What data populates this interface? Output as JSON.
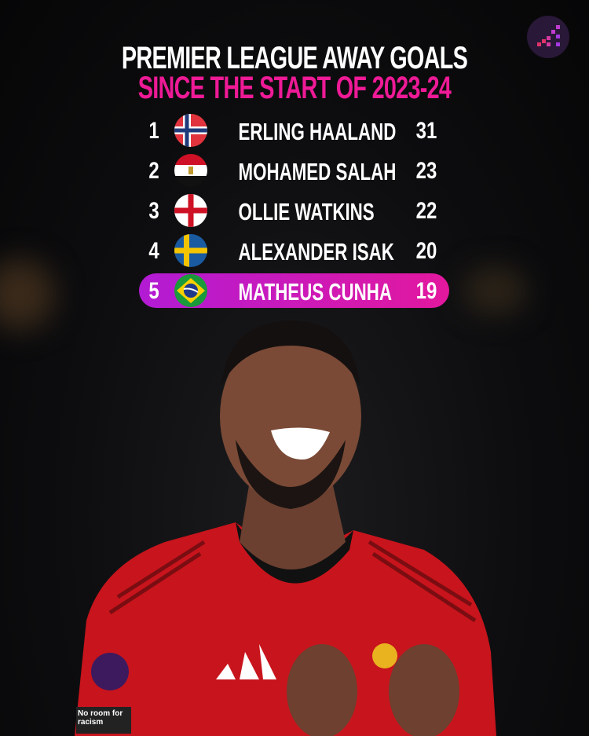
{
  "header": {
    "title": "PREMIER LEAGUE AWAY GOALS",
    "subtitle": "SINCE THE START OF 2023-24"
  },
  "colors": {
    "accent": "#ee1a96",
    "highlight_start": "#b21bd4",
    "highlight_end": "#e3189e"
  },
  "logo": {
    "icon": "pixel-bars-logo-icon"
  },
  "rankings": [
    {
      "rank": "1",
      "flag": "norway-flag-icon",
      "name": "ERLING HAALAND",
      "goals": "31"
    },
    {
      "rank": "2",
      "flag": "egypt-flag-icon",
      "name": "MOHAMED SALAH",
      "goals": "23"
    },
    {
      "rank": "3",
      "flag": "england-flag-icon",
      "name": "OLLIE WATKINS",
      "goals": "22"
    },
    {
      "rank": "4",
      "flag": "sweden-flag-icon",
      "name": "ALEXANDER ISAK",
      "goals": "20"
    },
    {
      "rank": "5",
      "flag": "brazil-flag-icon",
      "name": "MATHEUS CUNHA",
      "goals": "19",
      "highlighted": true
    }
  ],
  "photo": {
    "sleeve_badge": "No room for racism"
  }
}
